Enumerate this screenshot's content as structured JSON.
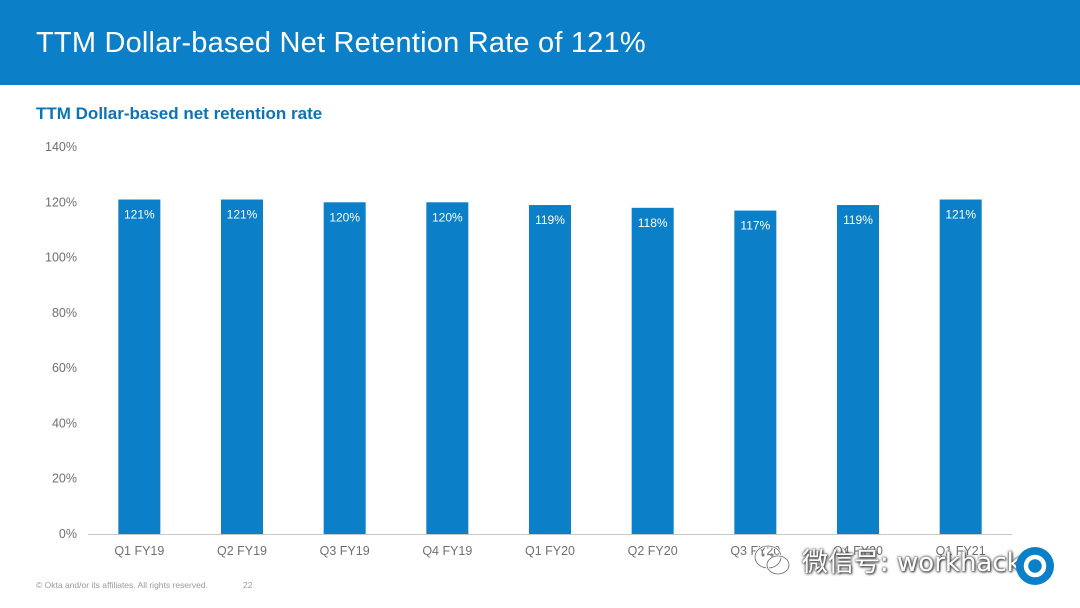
{
  "header": {
    "title": "TTM Dollar-based Net Retention Rate of 121%"
  },
  "colors": {
    "header_bg": "#0b7fc7",
    "bar": "#0b7fc7",
    "subtitle": "#0b73b8"
  },
  "chart_data": {
    "type": "bar",
    "title": "TTM Dollar-based net retention rate",
    "categories": [
      "Q1 FY19",
      "Q2 FY19",
      "Q3 FY19",
      "Q4 FY19",
      "Q1 FY20",
      "Q2 FY20",
      "Q3 FY20",
      "Q4 FY20",
      "Q1 FY21"
    ],
    "values": [
      121,
      121,
      120,
      120,
      119,
      118,
      117,
      119,
      121
    ],
    "value_labels": [
      "121%",
      "121%",
      "120%",
      "120%",
      "119%",
      "118%",
      "117%",
      "119%",
      "121%"
    ],
    "yticks": [
      "0%",
      "20%",
      "40%",
      "60%",
      "80%",
      "100%",
      "120%",
      "140%"
    ],
    "ylim": [
      0,
      140
    ],
    "xlabel": "",
    "ylabel": "",
    "grid": false,
    "legend": "none"
  },
  "footer": {
    "copyright": "© Okta and/or its affiliates. All rights reserved.",
    "page": "22"
  },
  "watermark": {
    "text": "微信号: workhacker",
    "icon": "wechat-icon"
  }
}
